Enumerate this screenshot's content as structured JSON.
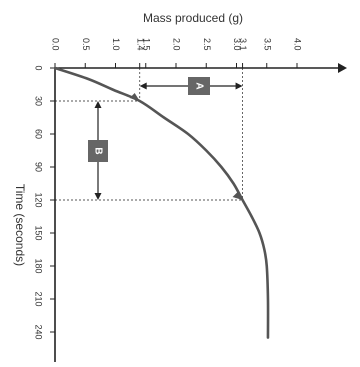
{
  "chart_data": {
    "type": "line",
    "orientation": "rotated",
    "title": "",
    "xlabel": "Mass produced (g)",
    "ylabel": "Time (seconds)",
    "mass_ticks": [
      "0.0",
      "0.5",
      "1.0",
      "1.4",
      "1.5",
      "2.0",
      "2.5",
      "3.0",
      "3.1",
      "3.5",
      "4.0"
    ],
    "mass_tick_values": [
      0.0,
      0.5,
      1.0,
      1.4,
      1.5,
      2.0,
      2.5,
      3.0,
      3.1,
      3.5,
      4.0
    ],
    "time_ticks": [
      "0",
      "30",
      "60",
      "90",
      "120",
      "150",
      "180",
      "210",
      "240"
    ],
    "time_tick_values": [
      0,
      30,
      60,
      90,
      120,
      150,
      180,
      210,
      240
    ],
    "mass_range": [
      0,
      4.5
    ],
    "time_range": [
      0,
      260
    ],
    "series": [
      {
        "points": [
          {
            "time": 0,
            "mass": 0.0
          },
          {
            "time": 10,
            "mass": 0.55
          },
          {
            "time": 20,
            "mass": 0.97
          },
          {
            "time": 30,
            "mass": 1.4
          },
          {
            "time": 45,
            "mass": 1.8
          },
          {
            "time": 60,
            "mass": 2.2
          },
          {
            "time": 75,
            "mass": 2.5
          },
          {
            "time": 90,
            "mass": 2.75
          },
          {
            "time": 105,
            "mass": 2.95
          },
          {
            "time": 120,
            "mass": 3.1
          },
          {
            "time": 135,
            "mass": 3.25
          },
          {
            "time": 150,
            "mass": 3.38
          },
          {
            "time": 165,
            "mass": 3.46
          },
          {
            "time": 180,
            "mass": 3.5
          },
          {
            "time": 210,
            "mass": 3.52
          },
          {
            "time": 245,
            "mass": 3.52
          }
        ]
      }
    ],
    "annotations": [
      {
        "label": "A",
        "type": "mass-span",
        "from_mass": 1.4,
        "to_mass": 3.1
      },
      {
        "label": "B",
        "type": "time-span",
        "from_time": 30,
        "to_time": 120
      }
    ],
    "guide_lines": [
      {
        "time": 30,
        "mass": 1.4
      },
      {
        "time": 120,
        "mass": 3.1
      }
    ],
    "colors": {
      "curve": "#555555",
      "axis": "#222222",
      "guide": "#555555",
      "label_box": "#666666"
    },
    "grid": false
  }
}
